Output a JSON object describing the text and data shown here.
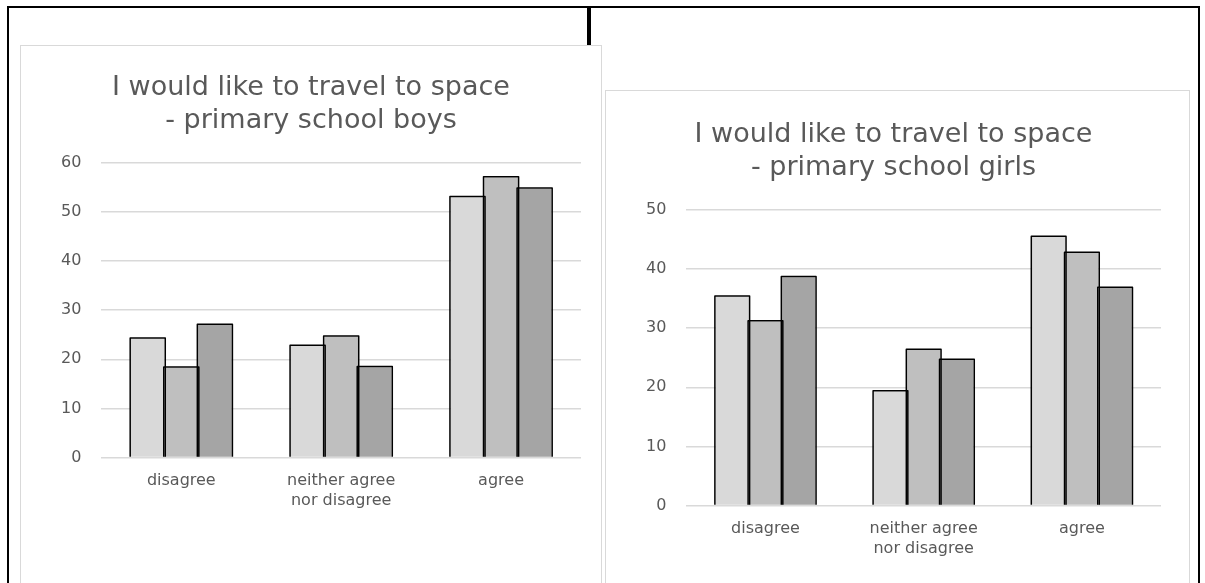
{
  "chart_data": [
    {
      "type": "bar",
      "title": "I would like to travel to space - primary school boys",
      "categories": [
        "disagree",
        "neither agree nor disagree",
        "agree"
      ],
      "series": [
        {
          "color": "#d9d9d9",
          "values": [
            24.2,
            22.7,
            53
          ]
        },
        {
          "color": "#bfbfbf",
          "values": [
            18.3,
            24.6,
            57
          ]
        },
        {
          "color": "#a5a5a5",
          "values": [
            27,
            18.4,
            54.7
          ]
        }
      ],
      "ylim": [
        0,
        60
      ],
      "yticks": [
        0,
        10,
        20,
        30,
        40,
        50,
        60
      ],
      "grid": "y",
      "legend": false
    },
    {
      "type": "bar",
      "title": "I would like to travel to space - primary school girls",
      "categories": [
        "disagree",
        "neither agree nor disagree",
        "agree"
      ],
      "series": [
        {
          "color": "#d9d9d9",
          "values": [
            35.3,
            19.3,
            45.4
          ]
        },
        {
          "color": "#bfbfbf",
          "values": [
            31.1,
            26.3,
            42.7
          ]
        },
        {
          "color": "#a5a5a5",
          "values": [
            38.6,
            24.6,
            36.8
          ]
        }
      ],
      "ylim": [
        0,
        50
      ],
      "yticks": [
        0,
        10,
        20,
        30,
        40,
        50
      ],
      "grid": "y",
      "legend": false
    }
  ]
}
